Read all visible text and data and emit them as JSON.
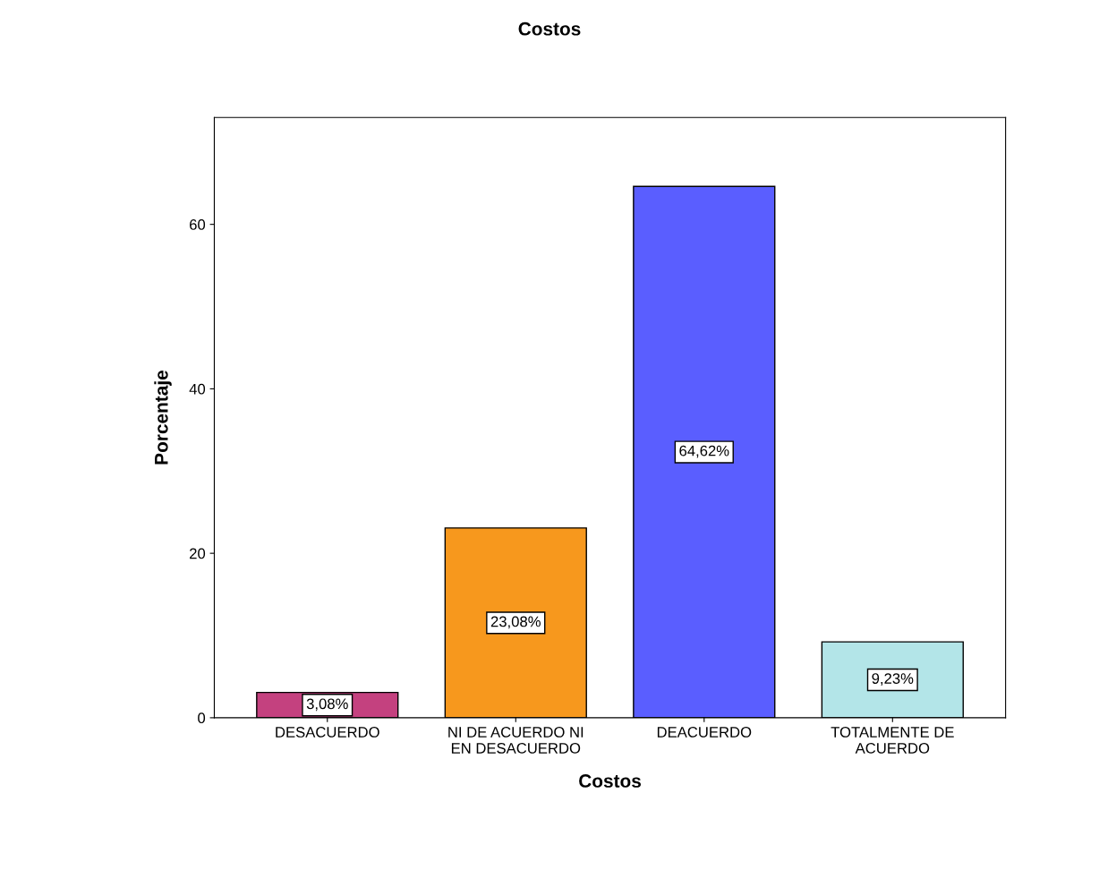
{
  "chart_data": {
    "type": "bar",
    "title": "Costos",
    "xlabel": "Costos",
    "ylabel": "Porcentaje",
    "categories": [
      "DESACUERDO",
      "NI DE ACUERDO NI\nEN DESACUERDO",
      "DEACUERDO",
      "TOTALMENTE DE\nACUERDO"
    ],
    "values": [
      3.08,
      23.08,
      64.62,
      9.23
    ],
    "value_labels": [
      "3,08%",
      "23,08%",
      "64,62%",
      "9,23%"
    ],
    "colors": [
      "#c4417f",
      "#f7981d",
      "#5a5eff",
      "#b3e5e8"
    ],
    "ylim": [
      0,
      73
    ],
    "yticks": [
      0,
      20,
      40,
      60
    ],
    "grid": false,
    "legend": false
  }
}
